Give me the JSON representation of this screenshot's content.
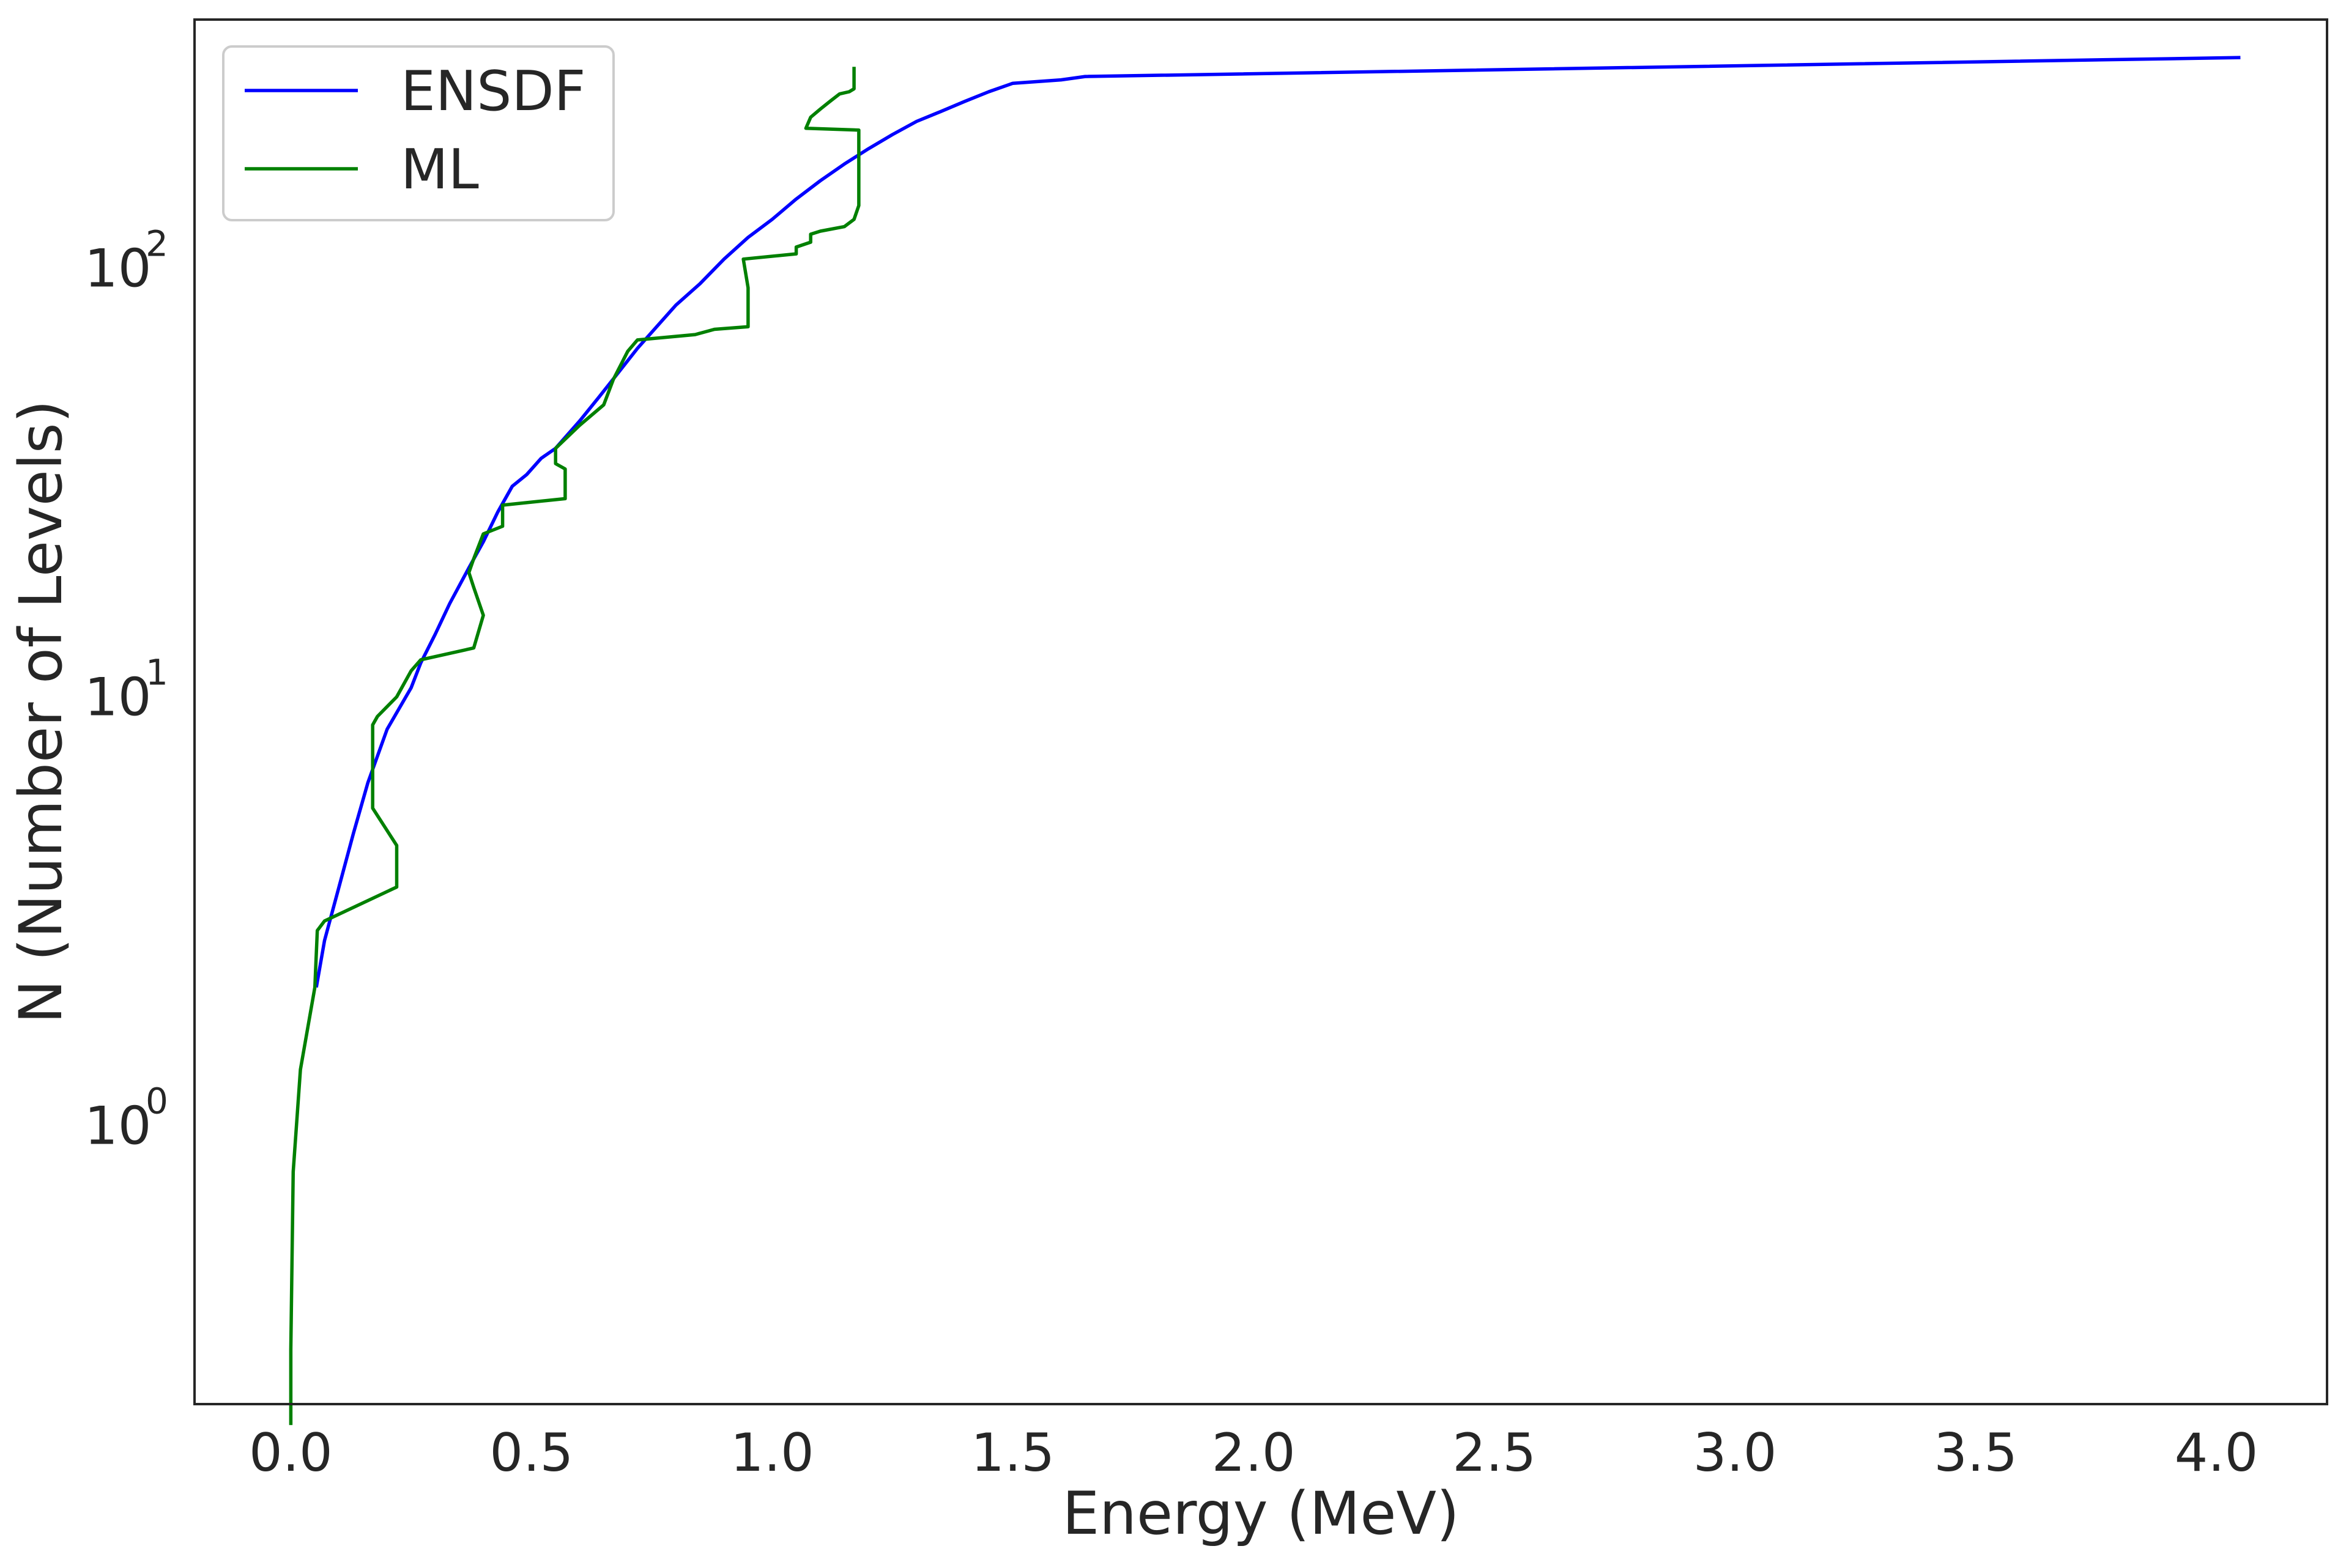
{
  "chart_data": {
    "type": "line",
    "title": "",
    "xlabel": "Energy (MeV)",
    "ylabel": "N (Number of Levels)",
    "xlim": [
      -0.2,
      4.23
    ],
    "ylim_log10": [
      -0.65,
      2.58
    ],
    "yscale": "log",
    "grid": false,
    "legend_position": "top-left",
    "xticks": [
      "0.0",
      "0.5",
      "1.0",
      "1.5",
      "2.0",
      "2.5",
      "3.0",
      "3.5",
      "4.0"
    ],
    "xtick_values": [
      0.0,
      0.5,
      1.0,
      1.5,
      2.0,
      2.5,
      3.0,
      3.5,
      4.0
    ],
    "yticks": [
      {
        "value": 1,
        "base": "10",
        "exponent": "0"
      },
      {
        "value": 10,
        "base": "10",
        "exponent": "1"
      },
      {
        "value": 100,
        "base": "10",
        "exponent": "2"
      }
    ],
    "series": [
      {
        "name": "ENSDF",
        "color": "#0000ff",
        "x": [
          0.053,
          0.07,
          0.1,
          0.13,
          0.16,
          0.2,
          0.25,
          0.27,
          0.3,
          0.33,
          0.37,
          0.4,
          0.43,
          0.46,
          0.49,
          0.52,
          0.55,
          0.6,
          0.64,
          0.68,
          0.72,
          0.76,
          0.8,
          0.85,
          0.9,
          0.95,
          1.0,
          1.05,
          1.1,
          1.15,
          1.2,
          1.25,
          1.3,
          1.35,
          1.4,
          1.45,
          1.5,
          1.6,
          1.65,
          4.05
        ],
        "y": [
          2.1,
          2.7,
          3.6,
          4.8,
          6.3,
          8.4,
          10.5,
          12.0,
          14.0,
          16.5,
          20.0,
          23.0,
          27.0,
          31.0,
          33.0,
          36.0,
          38.0,
          44.0,
          50.0,
          57.0,
          65.0,
          73.0,
          82.0,
          92.0,
          105.0,
          118.0,
          130.0,
          145.0,
          160.0,
          175.0,
          190.0,
          205.0,
          220.0,
          232.0,
          245.0,
          258.0,
          270.0,
          275.0,
          280.0,
          310.0
        ]
      },
      {
        "name": "ML",
        "color": "#008000",
        "x": [
          0.0,
          0.0,
          0.005,
          0.02,
          0.05,
          0.055,
          0.07,
          0.22,
          0.22,
          0.17,
          0.17,
          0.18,
          0.22,
          0.25,
          0.27,
          0.38,
          0.4,
          0.38,
          0.37,
          0.38,
          0.4,
          0.44,
          0.44,
          0.57,
          0.57,
          0.55,
          0.55,
          0.6,
          0.65,
          0.67,
          0.7,
          0.72,
          0.84,
          0.88,
          0.95,
          0.95,
          0.94,
          1.05,
          1.05,
          1.08,
          1.08,
          1.1,
          1.15,
          1.17,
          1.18,
          1.18,
          1.07,
          1.08,
          1.1,
          1.12,
          1.14,
          1.16,
          1.17,
          1.17
        ],
        "y": [
          0.2,
          0.3,
          0.78,
          1.35,
          2.1,
          2.85,
          3.0,
          3.6,
          4.5,
          5.5,
          8.6,
          9.0,
          10.0,
          11.5,
          12.2,
          13.0,
          15.5,
          18.0,
          19.5,
          21.0,
          24.0,
          25.0,
          28.0,
          29.0,
          34.0,
          35.0,
          38.0,
          43.0,
          48.0,
          55.0,
          64.0,
          68.0,
          70.0,
          72.0,
          73.0,
          90.0,
          105.0,
          108.0,
          112.0,
          115.0,
          120.0,
          122.0,
          125.0,
          130.0,
          140.0,
          210.0,
          212.0,
          225.0,
          235.0,
          245.0,
          255.0,
          258.0,
          262.0,
          295.0
        ]
      }
    ]
  }
}
